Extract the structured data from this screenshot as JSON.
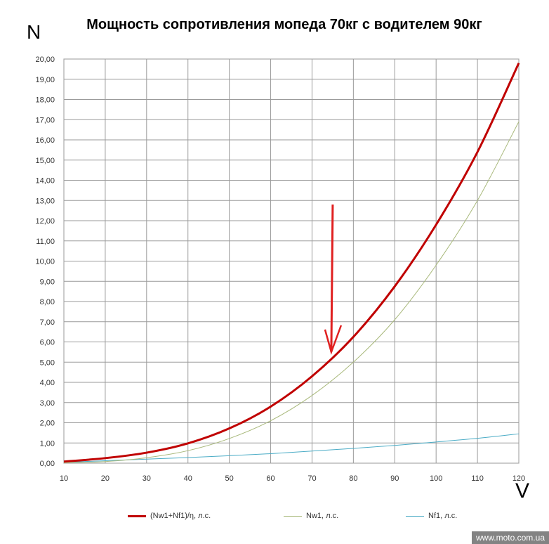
{
  "chart_data": {
    "type": "line",
    "title": "Мощность сопротивления мопеда 70кг с водителем  90кг",
    "ylabel": "N",
    "xlabel": "V",
    "xlim": [
      10,
      120
    ],
    "ylim": [
      0,
      20
    ],
    "x_ticks": [
      "10",
      "20",
      "30",
      "40",
      "50",
      "60",
      "70",
      "80",
      "90",
      "100",
      "110",
      "120"
    ],
    "y_ticks": [
      "0,00",
      "1,00",
      "2,00",
      "3,00",
      "4,00",
      "5,00",
      "6,00",
      "7,00",
      "8,00",
      "9,00",
      "10,00",
      "11,00",
      "12,00",
      "13,00",
      "14,00",
      "15,00",
      "16,00",
      "17,00",
      "18,00",
      "19,00",
      "20,00"
    ],
    "grid": true,
    "legend_position": "bottom",
    "series": [
      {
        "name": "(Nw1+Nf1)/η, л.с.",
        "color": "#c00000",
        "x": [
          10,
          20,
          30,
          40,
          50,
          60,
          70,
          80,
          90,
          100,
          110,
          120
        ],
        "y": [
          0.08,
          0.25,
          0.52,
          0.98,
          1.72,
          2.8,
          4.3,
          6.25,
          8.75,
          11.8,
          15.4,
          19.8
        ]
      },
      {
        "name": "Nw1, л.с.",
        "color": "#a9b97c",
        "x": [
          10,
          20,
          30,
          40,
          50,
          60,
          70,
          80,
          90,
          100,
          110,
          120
        ],
        "y": [
          0.01,
          0.08,
          0.27,
          0.62,
          1.22,
          2.1,
          3.35,
          5.0,
          7.1,
          9.8,
          13.0,
          16.9
        ]
      },
      {
        "name": "Nf1, л.с.",
        "color": "#4bacc6",
        "x": [
          10,
          20,
          30,
          40,
          50,
          60,
          70,
          80,
          90,
          100,
          110,
          120
        ],
        "y": [
          0.05,
          0.12,
          0.2,
          0.28,
          0.37,
          0.47,
          0.6,
          0.73,
          0.88,
          1.05,
          1.23,
          1.45
        ]
      }
    ],
    "annotations": [
      {
        "type": "arrow",
        "color": "#e02020",
        "x": 75,
        "y_from": 12.8,
        "y_to": 5.5
      }
    ]
  },
  "watermark": "www.moto.com.ua"
}
